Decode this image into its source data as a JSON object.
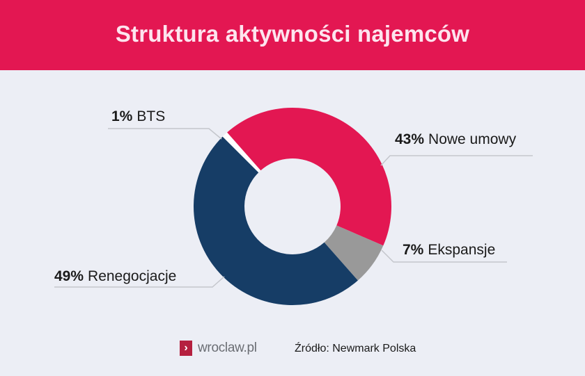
{
  "header": {
    "title": "Struktura aktywności najemców",
    "color": "#e31752"
  },
  "chart_data": {
    "type": "pie",
    "subtype": "donut",
    "title": "Struktura aktywności najemców",
    "categories": [
      "BTS",
      "Nowe umowy",
      "Ekspansje",
      "Renegocjacje"
    ],
    "values": [
      1,
      43,
      7,
      49
    ],
    "unit": "%",
    "colors": [
      "#ffffff",
      "#e31752",
      "#999999",
      "#163d66"
    ],
    "legend_position": "callout labels"
  },
  "labels": {
    "bts": {
      "pct": "1%",
      "name": "BTS"
    },
    "nowe": {
      "pct": "43%",
      "name": "Nowe umowy"
    },
    "ekspansje": {
      "pct": "7%",
      "name": "Ekspansje"
    },
    "renegocjacje": {
      "pct": "49%",
      "name": "Renegocjacje"
    }
  },
  "footer": {
    "logo_text": "wroclaw.pl",
    "logo_glyph": "›",
    "source": "Źródło: Newmark Polska"
  }
}
